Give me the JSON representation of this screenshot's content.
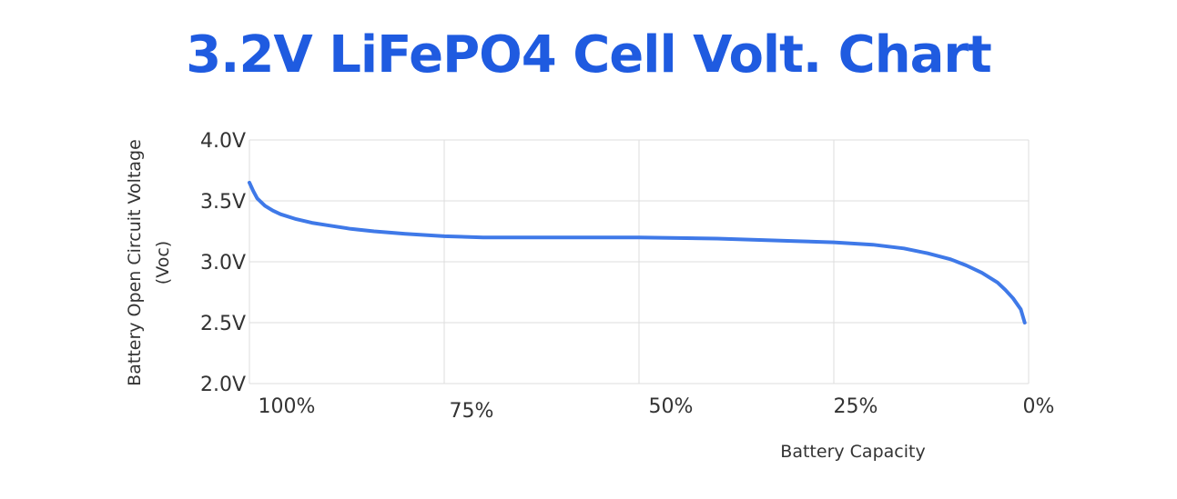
{
  "chart_data": {
    "type": "line",
    "title": "3.2V LiFePO4 Cell Volt. Chart",
    "xlabel": "Battery Capacity",
    "ylabel": [
      "Battery Open Circuit Voltage",
      "(Voc)"
    ],
    "x_ticks": [
      "100%",
      "75%",
      "50%",
      "25%",
      "0%"
    ],
    "y_ticks": [
      "4.0V",
      "3.5V",
      "3.0V",
      "2.5V",
      "2.0V"
    ],
    "x_direction": "descending",
    "xlim": [
      100,
      0
    ],
    "ylim": [
      2.0,
      4.0
    ],
    "grid": true,
    "series": [
      {
        "x": [
          100,
          99.5,
          99,
          98,
          97,
          96,
          94,
          92,
          90,
          87,
          84,
          80,
          75,
          70,
          60,
          50,
          40,
          30,
          25,
          20,
          16,
          13,
          10,
          8,
          6,
          4,
          3,
          2,
          1,
          0.5
        ],
        "values": [
          3.65,
          3.58,
          3.52,
          3.46,
          3.42,
          3.39,
          3.35,
          3.32,
          3.3,
          3.27,
          3.25,
          3.23,
          3.21,
          3.2,
          3.2,
          3.2,
          3.19,
          3.17,
          3.16,
          3.14,
          3.11,
          3.07,
          3.02,
          2.97,
          2.91,
          2.83,
          2.77,
          2.7,
          2.61,
          2.5
        ]
      }
    ]
  },
  "colors": {
    "title": "#1f5be0",
    "line": "#3f79e8",
    "grid": "#dddddd"
  }
}
